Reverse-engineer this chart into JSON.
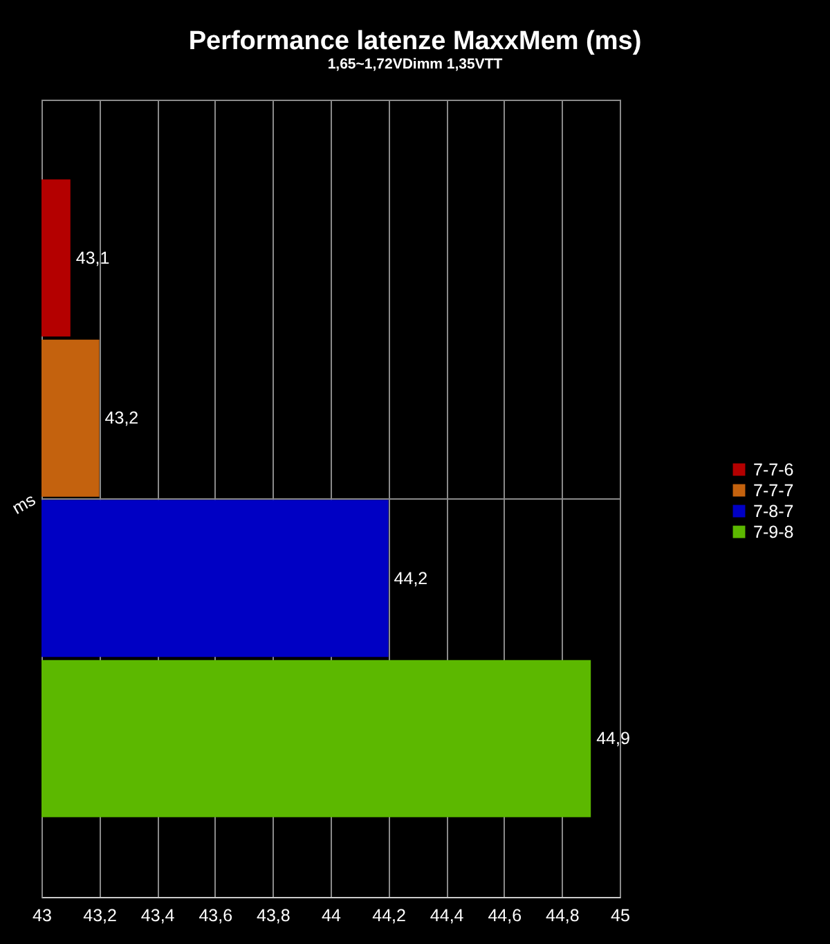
{
  "chart_data": {
    "type": "bar",
    "orientation": "horizontal",
    "title": "Performance latenze MaxxMem (ms)",
    "subtitle": "1,65~1,72VDimm 1,35VTT",
    "categories": [
      "ms"
    ],
    "series": [
      {
        "name": "7-7-6",
        "color": "#b40000",
        "values": [
          43.1
        ],
        "value_labels": [
          "43,1"
        ]
      },
      {
        "name": "7-7-7",
        "color": "#c4620e",
        "values": [
          43.2
        ],
        "value_labels": [
          "43,2"
        ]
      },
      {
        "name": "7-8-7",
        "color": "#0000c4",
        "values": [
          44.2
        ],
        "value_labels": [
          "44,2"
        ]
      },
      {
        "name": "7-9-8",
        "color": "#5cb800",
        "values": [
          44.9
        ],
        "value_labels": [
          "44,9"
        ]
      }
    ],
    "xlim": [
      43,
      45
    ],
    "xticks": [
      43,
      {
        "value": 43.2,
        "label": "43,2"
      },
      {
        "value": 43.4,
        "label": "43,4"
      },
      {
        "value": 43.6,
        "label": "43,6"
      },
      {
        "value": 43.8,
        "label": "43,8"
      },
      44,
      {
        "value": 44.2,
        "label": "44,2"
      },
      {
        "value": 44.4,
        "label": "44,4"
      },
      {
        "value": 44.6,
        "label": "44,6"
      },
      {
        "value": 44.8,
        "label": "44,8"
      },
      45
    ],
    "grid": true,
    "legend": "right"
  }
}
